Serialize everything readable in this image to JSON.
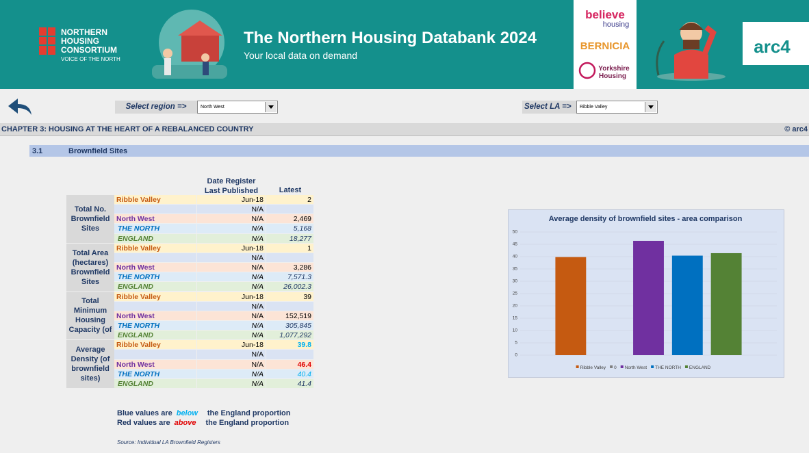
{
  "header": {
    "org_lines": [
      "NORTHERN",
      "HOUSING",
      "CONSORTIUM"
    ],
    "org_tagline": "VOICE OF THE NORTH",
    "title": "The Northern Housing Databank 2024",
    "subtitle": "Your local data on demand",
    "partners": [
      "believe",
      "housing",
      "BERNICIA",
      "Yorkshire",
      "Housing"
    ],
    "arc4_logo": "arc4"
  },
  "controls": {
    "region_label": "Select region =>",
    "region_value": "North West",
    "la_label": "Select LA =>",
    "la_value": "Ribble Valley"
  },
  "chapter": {
    "title": "CHAPTER 3: HOUSING AT THE HEART OF A REBALANCED COUNTRY",
    "copyright": "© arc4"
  },
  "section": {
    "number": "3.1",
    "title": "Brownfield Sites"
  },
  "table": {
    "headers": {
      "date": [
        "Date Register",
        "Last Published"
      ],
      "latest": "Latest"
    },
    "groups": [
      {
        "label": "Total No. Brownfield Sites",
        "rows": [
          {
            "area": "Ribble Valley",
            "date": "Jun-18",
            "latest": "2"
          },
          {
            "area": null,
            "date": "N/A",
            "latest": null
          },
          {
            "area": "North West",
            "date": "N/A",
            "latest": "2,469"
          },
          {
            "area": "THE NORTH",
            "date": "N/A",
            "latest": "5,168"
          },
          {
            "area": "ENGLAND",
            "date": "N/A",
            "latest": "18,277"
          }
        ]
      },
      {
        "label": "Total Area (hectares) Brownfield Sites",
        "rows": [
          {
            "area": "Ribble Valley",
            "date": "Jun-18",
            "latest": "1"
          },
          {
            "area": null,
            "date": "N/A",
            "latest": null
          },
          {
            "area": "North West",
            "date": "N/A",
            "latest": "3,286"
          },
          {
            "area": "THE NORTH",
            "date": "N/A",
            "latest": "7,571.3"
          },
          {
            "area": "ENGLAND",
            "date": "N/A",
            "latest": "26,002.3"
          }
        ]
      },
      {
        "label": "Total Minimum Housing Capacity (of",
        "rows": [
          {
            "area": "Ribble Valley",
            "date": "Jun-18",
            "latest": "39"
          },
          {
            "area": null,
            "date": "N/A",
            "latest": null
          },
          {
            "area": "North West",
            "date": "N/A",
            "latest": "152,519"
          },
          {
            "area": "THE NORTH",
            "date": "N/A",
            "latest": "305,845"
          },
          {
            "area": "ENGLAND",
            "date": "N/A",
            "latest": "1,077,292"
          }
        ]
      },
      {
        "label": "Average Density (of brownfield sites)",
        "rows": [
          {
            "area": "Ribble Valley",
            "date": "Jun-18",
            "latest": "39.8"
          },
          {
            "area": null,
            "date": "N/A",
            "latest": null
          },
          {
            "area": "North West",
            "date": "N/A",
            "latest": "46.4"
          },
          {
            "area": "THE NORTH",
            "date": "N/A",
            "latest": "40.4"
          },
          {
            "area": "ENGLAND",
            "date": "N/A",
            "latest": "41.4"
          }
        ]
      }
    ]
  },
  "notes": {
    "blue": [
      "Blue values are",
      "below",
      "the England proportion"
    ],
    "red": [
      "Red values are",
      "above",
      "the England proportion"
    ],
    "source": "Source: Individual LA Brownfield Registers"
  },
  "chart_data": {
    "type": "bar",
    "title": "Average density of brownfield sites - area comparison",
    "categories": [
      null
    ],
    "series": [
      {
        "name": "Ribble Valley",
        "color": "#c55a11",
        "values": [
          39.8
        ]
      },
      {
        "name": "0",
        "color": "#7f7f7f",
        "values": [
          null
        ]
      },
      {
        "name": "North West",
        "color": "#7030a0",
        "values": [
          46.4
        ]
      },
      {
        "name": "THE NORTH",
        "color": "#0070c0",
        "values": [
          40.4
        ]
      },
      {
        "name": "ENGLAND",
        "color": "#548235",
        "values": [
          41.4
        ]
      }
    ],
    "ylim": [
      0,
      50
    ],
    "yticks": [
      0,
      5,
      10,
      15,
      20,
      25,
      30,
      35,
      40,
      45,
      50
    ],
    "grid": true,
    "legend": "bottom"
  }
}
